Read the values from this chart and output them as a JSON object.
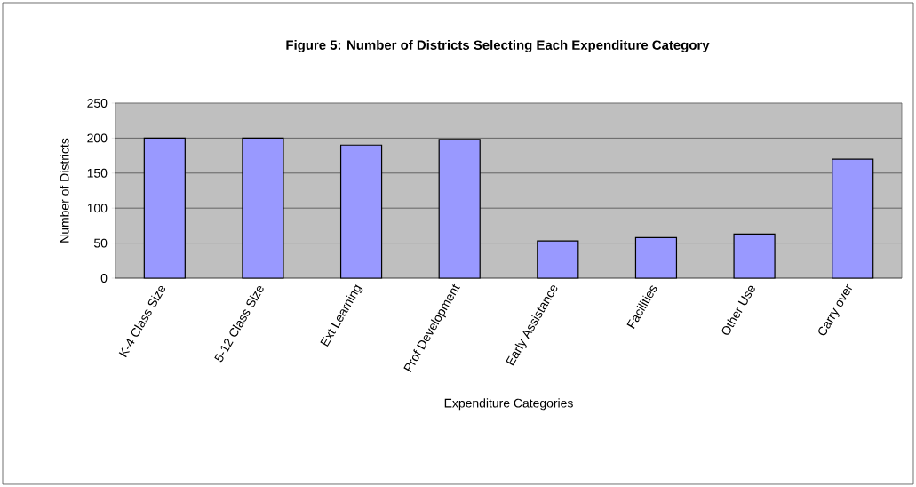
{
  "chart_data": {
    "type": "bar",
    "title": "Figure 5: Number of Districts Selecting Each Expenditure Category",
    "xlabel": "Expenditure Categories",
    "ylabel": "Number of Districts",
    "categories": [
      "K-4 Class Size",
      "5-12 Class Size",
      "Ext Learning",
      "Prof Development",
      "Early Assistance",
      "Facilities",
      "Other Use",
      "Carry over"
    ],
    "values": [
      200,
      200,
      190,
      198,
      53,
      58,
      63,
      170
    ],
    "color": "#9999ff",
    "ylim": [
      0,
      250
    ],
    "yticks": [
      0,
      50,
      100,
      150,
      200,
      250
    ],
    "grid": "y"
  }
}
